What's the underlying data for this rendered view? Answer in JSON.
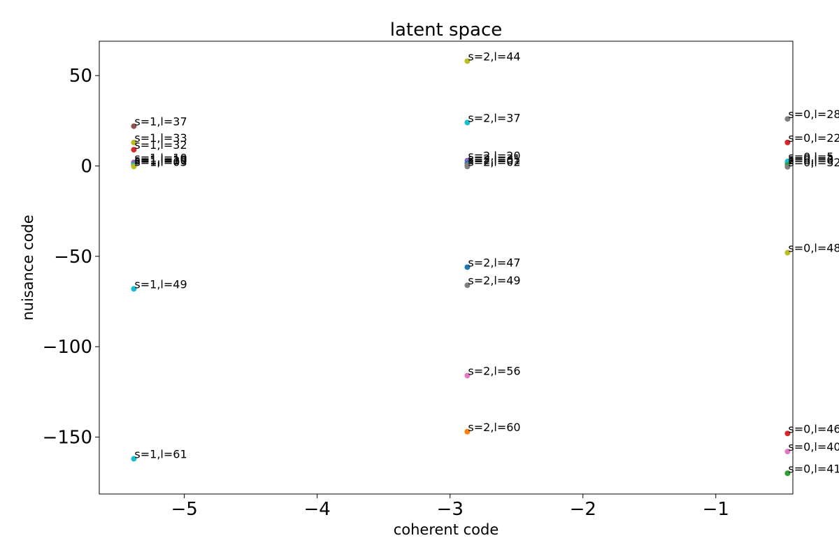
{
  "chart_data": {
    "type": "scatter",
    "title": "latent space",
    "xlabel": "coherent code",
    "ylabel": "nuisance code",
    "xlim": [
      -5.64,
      -0.42
    ],
    "ylim": [
      -181.5,
      69
    ],
    "x_ticks": [
      -5,
      -4,
      -3,
      -2,
      -1
    ],
    "y_ticks": [
      50,
      0,
      -50,
      -100,
      -150
    ],
    "x_tick_labels": [
      "−5",
      "−4",
      "−3",
      "−2",
      "−1"
    ],
    "y_tick_labels": [
      "50",
      "0",
      "−50",
      "−100",
      "−150"
    ],
    "grid": false,
    "points": [
      {
        "x": -5.38,
        "y": 22,
        "label": "s=1,l=37",
        "color": "#8c564b"
      },
      {
        "x": -5.38,
        "y": 13,
        "label": "s=1,l=33",
        "color": "#bcbd22"
      },
      {
        "x": -5.38,
        "y": 9,
        "label": "s=1,l=32",
        "color": "#d62728"
      },
      {
        "x": -5.38,
        "y": 2,
        "label": "s=1,l=10",
        "color": "#9467bd"
      },
      {
        "x": -5.38,
        "y": 1,
        "label": "s=1,l=19",
        "color": "#7f7f7f"
      },
      {
        "x": -5.38,
        "y": 0.3,
        "label": "s=1,l=30",
        "color": "#17becf"
      },
      {
        "x": -5.38,
        "y": -0.3,
        "label": "s=1,l=03",
        "color": "#bcbd22"
      },
      {
        "x": -5.38,
        "y": -68,
        "label": "s=1,l=49",
        "color": "#17becf"
      },
      {
        "x": -5.38,
        "y": -162,
        "label": "s=1,l=61",
        "color": "#17becf"
      },
      {
        "x": -2.87,
        "y": 58,
        "label": "s=2,l=44",
        "color": "#bcbd22"
      },
      {
        "x": -2.87,
        "y": 24,
        "label": "s=2,l=37",
        "color": "#17becf"
      },
      {
        "x": -2.87,
        "y": 3,
        "label": "s=2,l=20",
        "color": "#9467bd"
      },
      {
        "x": -2.87,
        "y": 1.5,
        "label": "s=2,l=31",
        "color": "#1f77b4"
      },
      {
        "x": -2.87,
        "y": 0.5,
        "label": "s=2,l=01",
        "color": "#7f7f7f"
      },
      {
        "x": -2.87,
        "y": -0.3,
        "label": "s=2,l=02",
        "color": "#7f7f7f"
      },
      {
        "x": -2.87,
        "y": -56,
        "label": "s=2,l=47",
        "color": "#1f77b4"
      },
      {
        "x": -2.87,
        "y": -66,
        "label": "s=2,l=49",
        "color": "#7f7f7f"
      },
      {
        "x": -2.87,
        "y": -116,
        "label": "s=2,l=56",
        "color": "#e377c2"
      },
      {
        "x": -2.87,
        "y": -147,
        "label": "s=2,l=60",
        "color": "#ff7f0e"
      },
      {
        "x": -0.46,
        "y": 26,
        "label": "s=0,l=28",
        "color": "#7f7f7f"
      },
      {
        "x": -0.46,
        "y": 13,
        "label": "s=0,l=22",
        "color": "#d62728"
      },
      {
        "x": -0.46,
        "y": 2.5,
        "label": "s=0,l=5",
        "color": "#17becf"
      },
      {
        "x": -0.46,
        "y": 1.5,
        "label": "s=0,l=2",
        "color": "#17becf"
      },
      {
        "x": -0.46,
        "y": 0.5,
        "label": "s=0,l=0",
        "color": "#2ca02c"
      },
      {
        "x": -0.46,
        "y": -0.5,
        "label": "s=0,l=32",
        "color": "#7f7f7f"
      },
      {
        "x": -0.46,
        "y": -48,
        "label": "s=0,l=48",
        "color": "#bcbd22"
      },
      {
        "x": -0.46,
        "y": -148,
        "label": "s=0,l=46",
        "color": "#d62728"
      },
      {
        "x": -0.46,
        "y": -158,
        "label": "s=0,l=40",
        "color": "#e377c2"
      },
      {
        "x": -0.46,
        "y": -170,
        "label": "s=0,l=41",
        "color": "#2ca02c"
      }
    ]
  }
}
